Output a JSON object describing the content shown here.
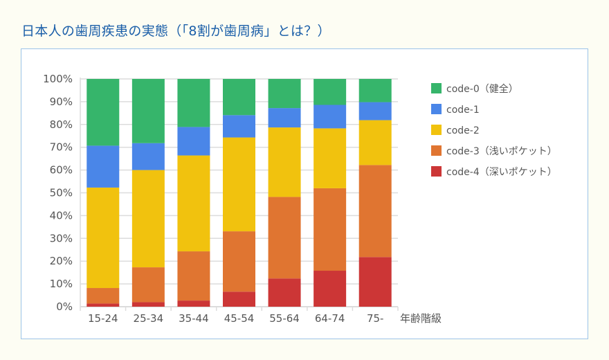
{
  "title": "日本人の歯周疾患の実態（「8割が歯周病」とは？）",
  "chart_data": {
    "type": "bar",
    "stacked": true,
    "percent_stacked": true,
    "title": "日本人の歯周疾患の実態（「8割が歯周病」とは？）",
    "xlabel": "年齢階級",
    "ylabel": "",
    "ylim": [
      0,
      100
    ],
    "yticks": [
      "0%",
      "10%",
      "20%",
      "30%",
      "40%",
      "50%",
      "60%",
      "70%",
      "80%",
      "90%",
      "100%"
    ],
    "grid": true,
    "legend": "right",
    "categories": [
      "15-24",
      "25-34",
      "35-44",
      "45-54",
      "55-64",
      "64-74",
      "75-"
    ],
    "series": [
      {
        "name": "code-4（深いポケット）",
        "color": "#cc3636",
        "values": [
          1.4,
          2.0,
          2.7,
          6.6,
          12.4,
          15.8,
          21.8
        ]
      },
      {
        "name": "code-3（浅いポケット）",
        "color": "#e07531",
        "values": [
          6.8,
          15.3,
          21.6,
          26.5,
          35.8,
          36.2,
          40.4
        ]
      },
      {
        "name": "code-2",
        "color": "#f1c20e",
        "values": [
          44.1,
          42.7,
          42.1,
          41.2,
          30.5,
          26.3,
          19.7
        ]
      },
      {
        "name": "code-1",
        "color": "#4a86e8",
        "values": [
          18.4,
          11.8,
          12.5,
          9.8,
          8.5,
          10.3,
          7.9
        ]
      },
      {
        "name": "code-0（健全）",
        "color": "#36b56b",
        "values": [
          29.3,
          28.2,
          21.1,
          15.9,
          12.8,
          11.4,
          10.2
        ]
      }
    ],
    "legend_order": [
      4,
      3,
      2,
      1,
      0
    ]
  }
}
